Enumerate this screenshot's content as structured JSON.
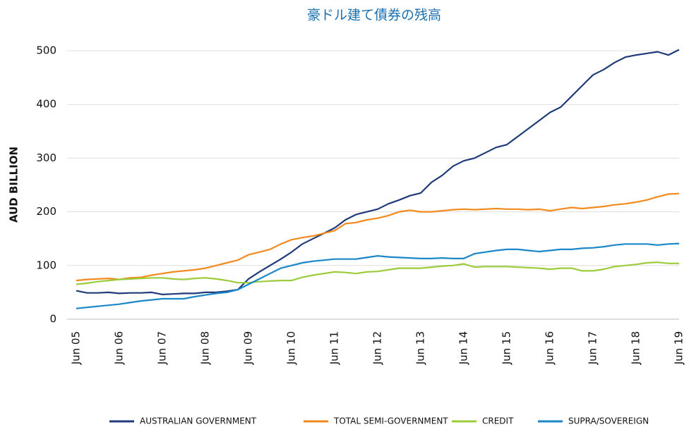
{
  "chart_data": {
    "type": "line",
    "title": "豪ドル建て債券の残高",
    "y_label": "AUD BILLION",
    "categories": [
      "Jun 05",
      null,
      null,
      null,
      "Jun 06",
      null,
      null,
      null,
      "Jun 07",
      null,
      null,
      null,
      "Jun 08",
      null,
      null,
      null,
      "Jun 09",
      null,
      null,
      null,
      "Jun 10",
      null,
      null,
      null,
      "Jun 11",
      null,
      null,
      null,
      "Jun 12",
      null,
      null,
      null,
      "Jun 13",
      null,
      null,
      null,
      "Jun 14",
      null,
      null,
      null,
      "Jun 15",
      null,
      null,
      null,
      "Jun 16",
      null,
      null,
      null,
      "Jun 17",
      null,
      null,
      null,
      "Jun 18",
      null,
      null,
      null,
      "Jun 19"
    ],
    "series": [
      {
        "name": "AUSTRALIAN GOVERNMENT",
        "color": "#1f3b7a",
        "values": [
          53,
          49,
          49,
          50,
          48,
          49,
          49,
          50,
          46,
          47,
          48,
          48,
          50,
          50,
          52,
          55,
          75,
          88,
          100,
          112,
          125,
          140,
          150,
          160,
          170,
          185,
          195,
          200,
          205,
          215,
          222,
          230,
          235,
          255,
          268,
          285,
          295,
          300,
          310,
          320,
          325,
          340,
          355,
          370,
          385,
          395,
          415,
          435,
          455,
          465,
          478,
          488,
          492,
          495,
          498,
          492,
          502
        ]
      },
      {
        "name": "TOTAL SEMI-GOVERNMENT",
        "color": "#f28a1e",
        "values": [
          72,
          74,
          75,
          76,
          74,
          77,
          78,
          82,
          85,
          88,
          90,
          92,
          95,
          100,
          105,
          110,
          120,
          125,
          130,
          140,
          148,
          152,
          155,
          160,
          165,
          178,
          180,
          185,
          188,
          193,
          200,
          203,
          200,
          200,
          202,
          204,
          205,
          204,
          205,
          206,
          205,
          205,
          204,
          205,
          202,
          205,
          208,
          206,
          208,
          210,
          213,
          215,
          218,
          222,
          228,
          233,
          234
        ]
      },
      {
        "name": "CREDIT",
        "color": "#9ccb3b",
        "values": [
          65,
          67,
          70,
          72,
          74,
          75,
          76,
          77,
          77,
          75,
          74,
          76,
          77,
          75,
          72,
          68,
          68,
          70,
          71,
          72,
          72,
          78,
          82,
          85,
          88,
          87,
          85,
          88,
          89,
          92,
          95,
          95,
          95,
          97,
          99,
          100,
          103,
          97,
          98,
          98,
          98,
          97,
          96,
          95,
          93,
          95,
          95,
          90,
          90,
          93,
          98,
          100,
          102,
          105,
          106,
          104,
          104
        ]
      },
      {
        "name": "SUPRA/SOVEREIGN",
        "color": "#1a87c9",
        "values": [
          20,
          22,
          24,
          26,
          28,
          31,
          34,
          36,
          38,
          38,
          38,
          42,
          45,
          48,
          50,
          55,
          65,
          75,
          85,
          95,
          100,
          105,
          108,
          110,
          112,
          112,
          112,
          115,
          118,
          116,
          115,
          114,
          113,
          113,
          114,
          113,
          113,
          122,
          125,
          128,
          130,
          130,
          128,
          126,
          128,
          130,
          130,
          132,
          133,
          135,
          138,
          140,
          140,
          140,
          138,
          140,
          141
        ]
      }
    ],
    "ylim": [
      0,
      500
    ],
    "yticks": [
      0,
      100,
      200,
      300,
      400,
      500
    ],
    "grid": true
  }
}
